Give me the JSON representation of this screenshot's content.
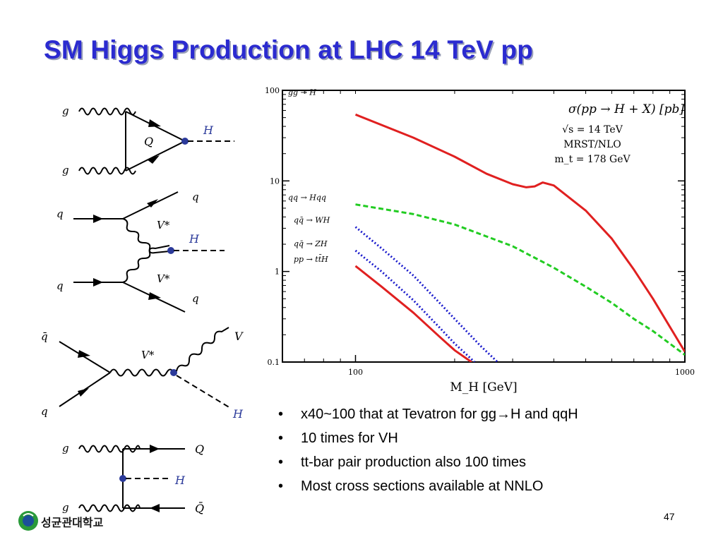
{
  "slide": {
    "title": "SM Higgs Production at LHC 14 TeV pp",
    "page_number": "47",
    "logo_text": "성균관대학교"
  },
  "bullets": [
    "x40~100 that at Tevatron for gg→H and qqH",
    "10 times for VH",
    "tt-bar pair production also 100 times",
    "Most cross sections available at NNLO"
  ],
  "feynman": {
    "ggH": {
      "g1": "g",
      "g2": "g",
      "loop": "Q",
      "higgs": "H"
    },
    "vbf": {
      "q_in1": "q",
      "q_in2": "q",
      "q_out1": "q",
      "q_out2": "q",
      "v1": "V*",
      "v2": "V*",
      "higgs": "H"
    },
    "vh": {
      "qbar": "q̄",
      "q": "q",
      "vstar": "V*",
      "v_out": "V",
      "higgs": "H"
    },
    "tth": {
      "g1": "g",
      "g2": "g",
      "qout": "Q",
      "qbar_out": "Q̄",
      "higgs": "H"
    }
  },
  "chart_data": {
    "type": "line",
    "xlabel": "M_H [GeV]",
    "ylabel": "",
    "x_scale": "log",
    "y_scale": "log",
    "xlim": [
      60,
      1000
    ],
    "ylim": [
      0.1,
      100
    ],
    "x_ticks": [
      {
        "value": 100,
        "label": "100"
      },
      {
        "value": 1000,
        "label": "1000"
      }
    ],
    "y_ticks": [
      {
        "value": 100,
        "label": "100"
      },
      {
        "value": 10,
        "label": "10"
      },
      {
        "value": 1,
        "label": "1"
      },
      {
        "value": 0.1,
        "label": "0.1"
      }
    ],
    "annotations": [
      "σ(pp → H + X) [pb]",
      "√s = 14 TeV",
      "MRST/NLO",
      "m_t = 178 GeV"
    ],
    "series": [
      {
        "name": "gg → H",
        "color": "#e02020",
        "style": "solid",
        "x": [
          100,
          150,
          200,
          250,
          300,
          330,
          350,
          370,
          400,
          500,
          600,
          700,
          800,
          1000
        ],
        "y": [
          54,
          30,
          18.5,
          12,
          9.2,
          8.5,
          8.7,
          9.6,
          8.9,
          4.7,
          2.3,
          1.05,
          0.5,
          0.13
        ]
      },
      {
        "name": "qq → Hqq",
        "color": "#22cc22",
        "style": "dashed",
        "x": [
          100,
          150,
          200,
          300,
          400,
          500,
          600,
          700,
          800,
          1000
        ],
        "y": [
          5.5,
          4.3,
          3.3,
          1.9,
          1.1,
          0.68,
          0.45,
          0.3,
          0.22,
          0.12
        ]
      },
      {
        "name": "qq̄ → WH",
        "color": "#1a1acc",
        "style": "dotted",
        "x": [
          100,
          120,
          150,
          180,
          200,
          240,
          270
        ],
        "y": [
          3.1,
          1.8,
          0.9,
          0.45,
          0.3,
          0.15,
          0.1
        ]
      },
      {
        "name": "qq̄ → ZH",
        "color": "#1a1acc",
        "style": "dotted",
        "x": [
          100,
          120,
          150,
          180,
          200,
          230
        ],
        "y": [
          1.7,
          1.0,
          0.48,
          0.24,
          0.16,
          0.1
        ]
      },
      {
        "name": "pp → tt̄H",
        "color": "#e02020",
        "style": "solid",
        "x": [
          100,
          120,
          150,
          180,
          200,
          225
        ],
        "y": [
          1.15,
          0.68,
          0.35,
          0.19,
          0.135,
          0.1
        ]
      }
    ]
  }
}
